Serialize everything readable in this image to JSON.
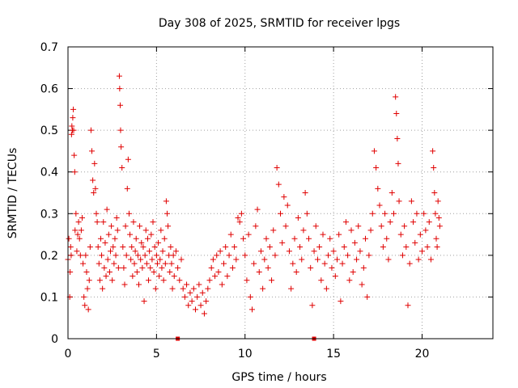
{
  "chart_data": {
    "type": "scatter",
    "title": "Day 308 of 2025, SRMTID for receiver lpgs",
    "xlabel": "GPS time / hours",
    "ylabel": "SRMTID / TECUs",
    "xlim": [
      0,
      24
    ],
    "ylim": [
      0,
      0.7
    ],
    "xticks": [
      0,
      5,
      10,
      15,
      20
    ],
    "xtick_labels": [
      "0",
      "5",
      "10",
      "15",
      "20"
    ],
    "yticks": [
      0,
      0.1,
      0.2,
      0.3,
      0.4,
      0.5,
      0.6,
      0.7
    ],
    "ytick_labels": [
      "0",
      "0.1",
      "0.2",
      "0.3",
      "0.4",
      "0.5",
      "0.6",
      "0.7"
    ],
    "grid": true,
    "marker": "+",
    "color": "#e00000",
    "series": [
      {
        "name": "SRMTID",
        "points": [
          [
            0.0,
            0.19
          ],
          [
            0.05,
            0.24
          ],
          [
            0.1,
            0.1
          ],
          [
            0.12,
            0.16
          ],
          [
            0.15,
            0.22
          ],
          [
            0.18,
            0.2
          ],
          [
            0.2,
            0.49
          ],
          [
            0.22,
            0.51
          ],
          [
            0.25,
            0.5
          ],
          [
            0.27,
            0.53
          ],
          [
            0.3,
            0.55
          ],
          [
            0.32,
            0.5
          ],
          [
            0.35,
            0.44
          ],
          [
            0.38,
            0.4
          ],
          [
            0.4,
            0.26
          ],
          [
            0.45,
            0.3
          ],
          [
            0.5,
            0.21
          ],
          [
            0.55,
            0.25
          ],
          [
            0.6,
            0.28
          ],
          [
            0.65,
            0.24
          ],
          [
            0.7,
            0.2
          ],
          [
            0.75,
            0.26
          ],
          [
            0.8,
            0.29
          ],
          [
            0.85,
            0.18
          ],
          [
            0.9,
            0.1
          ],
          [
            0.95,
            0.08
          ],
          [
            1.0,
            0.2
          ],
          [
            1.05,
            0.16
          ],
          [
            1.1,
            0.12
          ],
          [
            1.15,
            0.07
          ],
          [
            1.2,
            0.14
          ],
          [
            1.25,
            0.22
          ],
          [
            1.3,
            0.5
          ],
          [
            1.35,
            0.45
          ],
          [
            1.4,
            0.38
          ],
          [
            1.45,
            0.35
          ],
          [
            1.5,
            0.42
          ],
          [
            1.55,
            0.36
          ],
          [
            1.6,
            0.3
          ],
          [
            1.65,
            0.28
          ],
          [
            1.7,
            0.22
          ],
          [
            1.75,
            0.18
          ],
          [
            1.8,
            0.14
          ],
          [
            1.85,
            0.24
          ],
          [
            1.9,
            0.2
          ],
          [
            1.95,
            0.12
          ],
          [
            2.0,
            0.28
          ],
          [
            2.05,
            0.17
          ],
          [
            2.1,
            0.23
          ],
          [
            2.15,
            0.15
          ],
          [
            2.2,
            0.31
          ],
          [
            2.25,
            0.19
          ],
          [
            2.3,
            0.25
          ],
          [
            2.35,
            0.16
          ],
          [
            2.4,
            0.21
          ],
          [
            2.45,
            0.27
          ],
          [
            2.5,
            0.14
          ],
          [
            2.55,
            0.22
          ],
          [
            2.6,
            0.18
          ],
          [
            2.65,
            0.24
          ],
          [
            2.7,
            0.2
          ],
          [
            2.75,
            0.29
          ],
          [
            2.8,
            0.26
          ],
          [
            2.85,
            0.17
          ],
          [
            2.9,
            0.63
          ],
          [
            2.92,
            0.6
          ],
          [
            2.95,
            0.56
          ],
          [
            2.97,
            0.5
          ],
          [
            3.0,
            0.46
          ],
          [
            3.05,
            0.41
          ],
          [
            3.1,
            0.22
          ],
          [
            3.15,
            0.17
          ],
          [
            3.2,
            0.13
          ],
          [
            3.25,
            0.27
          ],
          [
            3.3,
            0.2
          ],
          [
            3.35,
            0.36
          ],
          [
            3.4,
            0.43
          ],
          [
            3.45,
            0.3
          ],
          [
            3.5,
            0.25
          ],
          [
            3.55,
            0.19
          ],
          [
            3.6,
            0.22
          ],
          [
            3.65,
            0.15
          ],
          [
            3.7,
            0.28
          ],
          [
            3.75,
            0.18
          ],
          [
            3.8,
            0.21
          ],
          [
            3.85,
            0.24
          ],
          [
            3.9,
            0.16
          ],
          [
            3.95,
            0.2
          ],
          [
            4.0,
            0.13
          ],
          [
            4.05,
            0.27
          ],
          [
            4.1,
            0.19
          ],
          [
            4.15,
            0.23
          ],
          [
            4.2,
            0.17
          ],
          [
            4.25,
            0.22
          ],
          [
            4.3,
            0.09
          ],
          [
            4.35,
            0.2
          ],
          [
            4.4,
            0.26
          ],
          [
            4.45,
            0.18
          ],
          [
            4.5,
            0.24
          ],
          [
            4.55,
            0.14
          ],
          [
            4.6,
            0.21
          ],
          [
            4.65,
            0.17
          ],
          [
            4.7,
            0.25
          ],
          [
            4.75,
            0.19
          ],
          [
            4.8,
            0.28
          ],
          [
            4.85,
            0.16
          ],
          [
            4.9,
            0.22
          ],
          [
            4.95,
            0.12
          ],
          [
            5.0,
            0.2
          ],
          [
            5.05,
            0.18
          ],
          [
            5.1,
            0.23
          ],
          [
            5.15,
            0.15
          ],
          [
            5.2,
            0.19
          ],
          [
            5.25,
            0.26
          ],
          [
            5.3,
            0.17
          ],
          [
            5.35,
            0.21
          ],
          [
            5.4,
            0.14
          ],
          [
            5.45,
            0.24
          ],
          [
            5.5,
            0.18
          ],
          [
            5.55,
            0.33
          ],
          [
            5.6,
            0.3
          ],
          [
            5.65,
            0.27
          ],
          [
            5.7,
            0.2
          ],
          [
            5.75,
            0.16
          ],
          [
            5.8,
            0.22
          ],
          [
            5.85,
            0.18
          ],
          [
            5.9,
            0.12
          ],
          [
            5.95,
            0.2
          ],
          [
            6.0,
            0.15
          ],
          [
            6.1,
            0.21
          ],
          [
            6.2,
            0.17
          ],
          [
            6.3,
            0.14
          ],
          [
            6.4,
            0.19
          ],
          [
            6.5,
            0.12
          ],
          [
            6.6,
            0.1
          ],
          [
            6.7,
            0.13
          ],
          [
            6.8,
            0.08
          ],
          [
            6.9,
            0.11
          ],
          [
            7.0,
            0.09
          ],
          [
            7.1,
            0.12
          ],
          [
            7.2,
            0.07
          ],
          [
            7.3,
            0.1
          ],
          [
            7.4,
            0.13
          ],
          [
            7.5,
            0.08
          ],
          [
            7.6,
            0.11
          ],
          [
            7.7,
            0.06
          ],
          [
            7.8,
            0.09
          ],
          [
            7.9,
            0.12
          ],
          [
            8.0,
            0.14
          ],
          [
            8.1,
            0.17
          ],
          [
            8.2,
            0.19
          ],
          [
            8.3,
            0.15
          ],
          [
            8.4,
            0.2
          ],
          [
            8.5,
            0.16
          ],
          [
            8.6,
            0.21
          ],
          [
            8.7,
            0.13
          ],
          [
            8.8,
            0.18
          ],
          [
            8.9,
            0.22
          ],
          [
            9.0,
            0.15
          ],
          [
            9.1,
            0.2
          ],
          [
            9.2,
            0.25
          ],
          [
            9.3,
            0.17
          ],
          [
            9.4,
            0.22
          ],
          [
            9.5,
            0.19
          ],
          [
            9.6,
            0.29
          ],
          [
            9.7,
            0.28
          ],
          [
            9.8,
            0.3
          ],
          [
            9.9,
            0.24
          ],
          [
            10.0,
            0.2
          ],
          [
            10.1,
            0.14
          ],
          [
            10.2,
            0.25
          ],
          [
            10.3,
            0.1
          ],
          [
            10.4,
            0.07
          ],
          [
            10.5,
            0.18
          ],
          [
            10.6,
            0.27
          ],
          [
            10.7,
            0.31
          ],
          [
            10.8,
            0.16
          ],
          [
            10.9,
            0.21
          ],
          [
            11.0,
            0.12
          ],
          [
            11.1,
            0.19
          ],
          [
            11.2,
            0.24
          ],
          [
            11.3,
            0.17
          ],
          [
            11.4,
            0.22
          ],
          [
            11.5,
            0.14
          ],
          [
            11.6,
            0.26
          ],
          [
            11.7,
            0.2
          ],
          [
            11.8,
            0.41
          ],
          [
            11.9,
            0.37
          ],
          [
            12.0,
            0.3
          ],
          [
            12.1,
            0.23
          ],
          [
            12.2,
            0.34
          ],
          [
            12.3,
            0.27
          ],
          [
            12.4,
            0.32
          ],
          [
            12.5,
            0.21
          ],
          [
            12.6,
            0.12
          ],
          [
            12.7,
            0.18
          ],
          [
            12.8,
            0.24
          ],
          [
            12.9,
            0.16
          ],
          [
            13.0,
            0.29
          ],
          [
            13.1,
            0.22
          ],
          [
            13.2,
            0.19
          ],
          [
            13.3,
            0.26
          ],
          [
            13.4,
            0.35
          ],
          [
            13.5,
            0.3
          ],
          [
            13.6,
            0.24
          ],
          [
            13.7,
            0.17
          ],
          [
            13.8,
            0.08
          ],
          [
            13.9,
            0.21
          ],
          [
            14.0,
            0.27
          ],
          [
            14.1,
            0.19
          ],
          [
            14.2,
            0.22
          ],
          [
            14.3,
            0.14
          ],
          [
            14.4,
            0.25
          ],
          [
            14.5,
            0.18
          ],
          [
            14.6,
            0.12
          ],
          [
            14.7,
            0.2
          ],
          [
            14.8,
            0.24
          ],
          [
            14.9,
            0.17
          ],
          [
            15.0,
            0.21
          ],
          [
            15.1,
            0.15
          ],
          [
            15.2,
            0.19
          ],
          [
            15.3,
            0.25
          ],
          [
            15.4,
            0.09
          ],
          [
            15.5,
            0.18
          ],
          [
            15.6,
            0.22
          ],
          [
            15.7,
            0.28
          ],
          [
            15.8,
            0.2
          ],
          [
            15.9,
            0.14
          ],
          [
            16.0,
            0.26
          ],
          [
            16.1,
            0.16
          ],
          [
            16.2,
            0.23
          ],
          [
            16.3,
            0.19
          ],
          [
            16.4,
            0.27
          ],
          [
            16.5,
            0.21
          ],
          [
            16.6,
            0.13
          ],
          [
            16.7,
            0.17
          ],
          [
            16.8,
            0.24
          ],
          [
            16.9,
            0.1
          ],
          [
            17.0,
            0.2
          ],
          [
            17.1,
            0.26
          ],
          [
            17.2,
            0.3
          ],
          [
            17.3,
            0.45
          ],
          [
            17.4,
            0.41
          ],
          [
            17.5,
            0.36
          ],
          [
            17.6,
            0.32
          ],
          [
            17.7,
            0.27
          ],
          [
            17.8,
            0.22
          ],
          [
            17.9,
            0.3
          ],
          [
            18.0,
            0.24
          ],
          [
            18.1,
            0.19
          ],
          [
            18.2,
            0.28
          ],
          [
            18.3,
            0.35
          ],
          [
            18.4,
            0.3
          ],
          [
            18.5,
            0.58
          ],
          [
            18.55,
            0.54
          ],
          [
            18.6,
            0.48
          ],
          [
            18.65,
            0.42
          ],
          [
            18.7,
            0.33
          ],
          [
            18.8,
            0.25
          ],
          [
            18.9,
            0.2
          ],
          [
            19.0,
            0.27
          ],
          [
            19.1,
            0.22
          ],
          [
            19.2,
            0.08
          ],
          [
            19.3,
            0.18
          ],
          [
            19.4,
            0.33
          ],
          [
            19.5,
            0.28
          ],
          [
            19.6,
            0.23
          ],
          [
            19.7,
            0.3
          ],
          [
            19.8,
            0.19
          ],
          [
            19.9,
            0.25
          ],
          [
            20.0,
            0.21
          ],
          [
            20.1,
            0.3
          ],
          [
            20.2,
            0.26
          ],
          [
            20.3,
            0.22
          ],
          [
            20.4,
            0.28
          ],
          [
            20.5,
            0.19
          ],
          [
            20.6,
            0.45
          ],
          [
            20.65,
            0.41
          ],
          [
            20.7,
            0.35
          ],
          [
            20.75,
            0.3
          ],
          [
            20.8,
            0.24
          ],
          [
            20.85,
            0.22
          ],
          [
            20.9,
            0.33
          ],
          [
            20.95,
            0.29
          ],
          [
            21.0,
            0.27
          ]
        ]
      }
    ],
    "extra_markers": [
      [
        6.2,
        0.0
      ],
      [
        13.9,
        0.0
      ]
    ]
  }
}
